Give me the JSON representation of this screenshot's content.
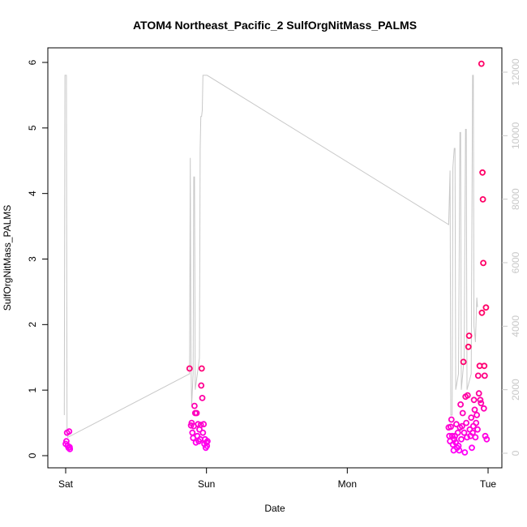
{
  "chart_data": {
    "type": "scatter",
    "title": "ATOM4 Northeast_Pacific_2 SulfOrgNitMass_PALMS",
    "xlabel": "Date",
    "ylabel": "SulfOrgNitMass_PALMS",
    "x_ticks": [
      "Sat",
      "Sun",
      "Mon",
      "Tue"
    ],
    "y_ticks": [
      "0",
      "1",
      "2",
      "3",
      "4",
      "5",
      "6"
    ],
    "ylim": [
      0,
      6
    ],
    "y2_ticks": [
      "0",
      "2000",
      "4000",
      "6000",
      "8000",
      "10000",
      "12000"
    ],
    "y2lim": [
      0,
      12000
    ],
    "xlim_days": [
      -0.05,
      3.08
    ],
    "grid": false,
    "legend": "none",
    "colors": {
      "altitude_line": "#c8c8c8",
      "points_low": "#ff00ff",
      "points_high": "#ff0066",
      "axes": "#000000",
      "right_axis": "#c8c8c8"
    },
    "series": [
      {
        "points": [
          [
            0.0,
            0.18
          ],
          [
            0.005,
            0.22
          ],
          [
            0.01,
            0.35
          ],
          [
            0.015,
            0.15
          ],
          [
            0.02,
            0.12
          ],
          [
            0.025,
            0.37
          ],
          [
            0.028,
            0.13
          ],
          [
            0.03,
            0.1
          ],
          [
            0.88,
            1.33
          ],
          [
            0.89,
            0.46
          ],
          [
            0.895,
            0.5
          ],
          [
            0.9,
            0.35
          ],
          [
            0.905,
            0.27
          ],
          [
            0.91,
            0.45
          ],
          [
            0.915,
            0.76
          ],
          [
            0.92,
            0.65
          ],
          [
            0.925,
            0.2
          ],
          [
            0.93,
            0.65
          ],
          [
            0.935,
            0.3
          ],
          [
            0.94,
            0.48
          ],
          [
            0.945,
            0.22
          ],
          [
            0.95,
            0.4
          ],
          [
            0.955,
            0.25
          ],
          [
            0.96,
            0.47
          ],
          [
            0.963,
            1.07
          ],
          [
            0.966,
            1.33
          ],
          [
            0.97,
            0.88
          ],
          [
            0.975,
            0.35
          ],
          [
            0.98,
            0.48
          ],
          [
            0.985,
            0.18
          ],
          [
            0.99,
            0.25
          ],
          [
            0.995,
            0.12
          ],
          [
            1.0,
            0.2
          ],
          [
            1.003,
            0.15
          ],
          [
            1.007,
            0.22
          ],
          [
            2.72,
            0.43
          ],
          [
            2.725,
            0.3
          ],
          [
            2.73,
            0.22
          ],
          [
            2.735,
            0.44
          ],
          [
            2.74,
            0.55
          ],
          [
            2.745,
            0.3
          ],
          [
            2.75,
            0.17
          ],
          [
            2.755,
            0.08
          ],
          [
            2.76,
            0.25
          ],
          [
            2.765,
            0.3
          ],
          [
            2.77,
            0.2
          ],
          [
            2.775,
            0.48
          ],
          [
            2.78,
            0.12
          ],
          [
            2.785,
            0.35
          ],
          [
            2.79,
            0.15
          ],
          [
            2.795,
            0.08
          ],
          [
            2.8,
            0.43
          ],
          [
            2.805,
            0.78
          ],
          [
            2.81,
            0.25
          ],
          [
            2.815,
            0.45
          ],
          [
            2.82,
            0.65
          ],
          [
            2.825,
            1.43
          ],
          [
            2.83,
            0.35
          ],
          [
            2.835,
            0.05
          ],
          [
            2.84,
            0.9
          ],
          [
            2.845,
            0.5
          ],
          [
            2.85,
            0.28
          ],
          [
            2.855,
            0.92
          ],
          [
            2.86,
            1.66
          ],
          [
            2.865,
            1.83
          ],
          [
            2.87,
            0.4
          ],
          [
            2.875,
            0.3
          ],
          [
            2.88,
            0.58
          ],
          [
            2.885,
            0.12
          ],
          [
            2.89,
            0.35
          ],
          [
            2.895,
            0.45
          ],
          [
            2.9,
            0.85
          ],
          [
            2.905,
            0.7
          ],
          [
            2.91,
            0.28
          ],
          [
            2.915,
            0.5
          ],
          [
            2.92,
            0.62
          ],
          [
            2.925,
            0.4
          ],
          [
            2.93,
            1.22
          ],
          [
            2.935,
            0.95
          ],
          [
            2.94,
            1.37
          ],
          [
            2.945,
            0.85
          ],
          [
            2.95,
            0.8
          ],
          [
            2.953,
            5.98
          ],
          [
            2.956,
            2.18
          ],
          [
            2.96,
            4.32
          ],
          [
            2.963,
            3.91
          ],
          [
            2.966,
            2.94
          ],
          [
            2.97,
            0.72
          ],
          [
            2.973,
            1.37
          ],
          [
            2.976,
            1.22
          ],
          [
            2.98,
            0.3
          ],
          [
            2.985,
            2.26
          ],
          [
            2.99,
            0.25
          ]
        ]
      }
    ],
    "altitude_line": [
      [
        -0.01,
        1200
      ],
      [
        -0.005,
        11900
      ],
      [
        0.0,
        11900
      ],
      [
        0.005,
        11900
      ],
      [
        0.01,
        600
      ],
      [
        0.015,
        500
      ],
      [
        0.88,
        2500
      ],
      [
        0.885,
        9300
      ],
      [
        0.89,
        2800
      ],
      [
        0.895,
        1500
      ],
      [
        0.905,
        2500
      ],
      [
        0.91,
        8700
      ],
      [
        0.915,
        8700
      ],
      [
        0.92,
        2000
      ],
      [
        0.95,
        3000
      ],
      [
        0.955,
        9600
      ],
      [
        0.96,
        10600
      ],
      [
        0.965,
        10600
      ],
      [
        0.97,
        10800
      ],
      [
        0.975,
        11900
      ],
      [
        0.98,
        11900
      ],
      [
        0.985,
        11900
      ],
      [
        0.99,
        11900
      ],
      [
        1.0,
        11900
      ],
      [
        1.005,
        11900
      ],
      [
        2.72,
        7200
      ],
      [
        2.73,
        8900
      ],
      [
        2.735,
        1200
      ],
      [
        2.745,
        1200
      ],
      [
        2.75,
        9000
      ],
      [
        2.76,
        9600
      ],
      [
        2.765,
        9600
      ],
      [
        2.77,
        2000
      ],
      [
        2.79,
        2500
      ],
      [
        2.8,
        10100
      ],
      [
        2.805,
        10100
      ],
      [
        2.81,
        2000
      ],
      [
        2.83,
        3000
      ],
      [
        2.84,
        10200
      ],
      [
        2.845,
        10200
      ],
      [
        2.85,
        2000
      ],
      [
        2.88,
        2500
      ],
      [
        2.89,
        11900
      ],
      [
        2.895,
        11900
      ],
      [
        2.9,
        4000
      ],
      [
        2.91,
        3500
      ],
      [
        2.92,
        4900
      ],
      [
        2.925,
        4600
      ]
    ]
  }
}
